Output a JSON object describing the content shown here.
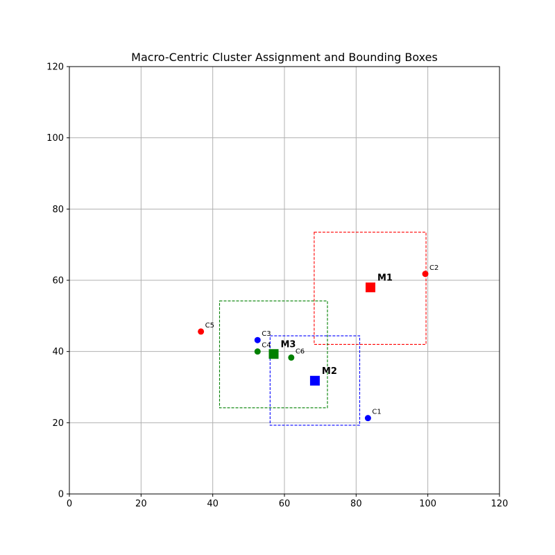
{
  "chart_data": {
    "type": "scatter",
    "title": "Macro-Centric Cluster Assignment and Bounding Boxes",
    "xlabel": "",
    "ylabel": "",
    "xlim": [
      0,
      120
    ],
    "ylim": [
      0,
      120
    ],
    "xticks": [
      0,
      20,
      40,
      60,
      80,
      100,
      120
    ],
    "yticks": [
      0,
      20,
      40,
      60,
      80,
      100,
      120
    ],
    "grid": true,
    "legend": "none",
    "colors": {
      "red": "#ff0000",
      "blue": "#0000ff",
      "green": "#008000"
    },
    "macros": [
      {
        "label": "M1",
        "x": 84,
        "y": 58,
        "color": "red"
      },
      {
        "label": "M2",
        "x": 68.5,
        "y": 31.8,
        "color": "blue"
      },
      {
        "label": "M3",
        "x": 57,
        "y": 39.3,
        "color": "green"
      }
    ],
    "clients": [
      {
        "label": "C1",
        "x": 83.3,
        "y": 21.3,
        "color": "blue"
      },
      {
        "label": "C2",
        "x": 99.3,
        "y": 61.8,
        "color": "red"
      },
      {
        "label": "C3",
        "x": 52.5,
        "y": 43.2,
        "color": "blue"
      },
      {
        "label": "C4",
        "x": 52.5,
        "y": 40,
        "color": "green"
      },
      {
        "label": "C5",
        "x": 36.7,
        "y": 45.6,
        "color": "red"
      },
      {
        "label": "C6",
        "x": 61.9,
        "y": 38.3,
        "color": "green"
      }
    ],
    "bounding_boxes": [
      {
        "cluster": "M1",
        "xmin": 68.3,
        "xmax": 99.5,
        "ymin": 42,
        "ymax": 73.5,
        "color": "red"
      },
      {
        "cluster": "M2",
        "xmin": 56,
        "xmax": 81,
        "ymin": 19.3,
        "ymax": 44.4,
        "color": "blue"
      },
      {
        "cluster": "M3",
        "xmin": 41.9,
        "xmax": 72,
        "ymin": 24.2,
        "ymax": 54.2,
        "color": "green"
      }
    ]
  }
}
